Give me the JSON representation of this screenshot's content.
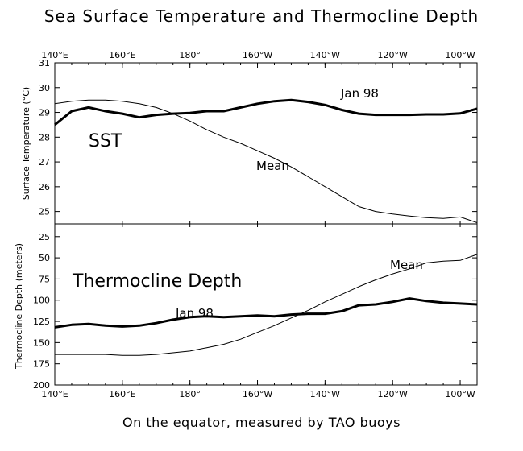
{
  "title": "Sea Surface Temperature and Thermocline Depth",
  "footer": "On the equator, measured by TAO buoys",
  "chart_data": [
    {
      "type": "line",
      "panel_label": "SST",
      "ylabel": "Surface Temperature (°C)",
      "xlim": [
        140,
        265
      ],
      "ylim": [
        24.5,
        31
      ],
      "x_tick_values": [
        140,
        160,
        180,
        200,
        220,
        240,
        260
      ],
      "x_tick_labels": [
        "140°E",
        "160°E",
        "180°",
        "160°W",
        "140°W",
        "120°W",
        "100°W"
      ],
      "y_tick_values": [
        25,
        26,
        27,
        28,
        29,
        30,
        31
      ],
      "y_tick_labels": [
        "25",
        "26",
        "27",
        "28",
        "29",
        "30",
        "31"
      ],
      "series": [
        {
          "name": "Jan 98",
          "x": [
            140,
            145,
            150,
            155,
            160,
            165,
            170,
            175,
            180,
            185,
            190,
            195,
            200,
            205,
            210,
            215,
            220,
            225,
            230,
            235,
            240,
            245,
            250,
            255,
            260,
            265
          ],
          "y": [
            28.5,
            29.05,
            29.2,
            29.05,
            28.95,
            28.8,
            28.9,
            28.95,
            28.98,
            29.05,
            29.05,
            29.2,
            29.35,
            29.45,
            29.5,
            29.42,
            29.3,
            29.1,
            28.95,
            28.9,
            28.9,
            28.9,
            28.92,
            28.92,
            28.96,
            29.15
          ]
        },
        {
          "name": "Mean",
          "x": [
            140,
            145,
            150,
            155,
            160,
            165,
            170,
            175,
            180,
            185,
            190,
            195,
            200,
            205,
            210,
            215,
            220,
            225,
            230,
            235,
            240,
            245,
            250,
            255,
            260,
            265
          ],
          "y": [
            29.35,
            29.45,
            29.5,
            29.5,
            29.45,
            29.35,
            29.2,
            28.95,
            28.65,
            28.3,
            28.0,
            27.75,
            27.45,
            27.15,
            26.8,
            26.4,
            26.0,
            25.6,
            25.2,
            25.0,
            24.9,
            24.82,
            24.75,
            24.72,
            24.78,
            24.55
          ]
        }
      ]
    },
    {
      "type": "line",
      "panel_label": "Thermocline Depth",
      "ylabel": "Thermocline Depth (meters)",
      "xlim": [
        140,
        265
      ],
      "ylim": [
        200,
        10
      ],
      "x_tick_values": [
        140,
        160,
        180,
        200,
        220,
        240,
        260
      ],
      "x_tick_labels": [
        "140°E",
        "160°E",
        "180°",
        "160°W",
        "140°W",
        "120°W",
        "100°W"
      ],
      "y_tick_values": [
        25,
        50,
        75,
        100,
        125,
        150,
        175,
        200
      ],
      "y_tick_labels": [
        "25",
        "50",
        "75",
        "100",
        "125",
        "150",
        "175",
        "200"
      ],
      "series": [
        {
          "name": "Jan 98",
          "x": [
            140,
            145,
            150,
            155,
            160,
            165,
            170,
            175,
            180,
            185,
            190,
            195,
            200,
            205,
            210,
            215,
            220,
            225,
            230,
            235,
            240,
            245,
            250,
            255,
            260,
            265
          ],
          "y": [
            132,
            129,
            128,
            130,
            131,
            130,
            127,
            123,
            120,
            119,
            120,
            119,
            118,
            119,
            117,
            116,
            116,
            113,
            106,
            105,
            102,
            98,
            101,
            103,
            104,
            105
          ]
        },
        {
          "name": "Mean",
          "x": [
            140,
            145,
            150,
            155,
            160,
            165,
            170,
            175,
            180,
            185,
            190,
            195,
            200,
            205,
            210,
            215,
            220,
            225,
            230,
            235,
            240,
            245,
            250,
            255,
            260,
            265
          ],
          "y": [
            164,
            164,
            164,
            164,
            165,
            165,
            164,
            162,
            160,
            156,
            152,
            146,
            138,
            130,
            121,
            112,
            102,
            93,
            84,
            76,
            69,
            63,
            56,
            54,
            53,
            46
          ]
        }
      ]
    }
  ]
}
